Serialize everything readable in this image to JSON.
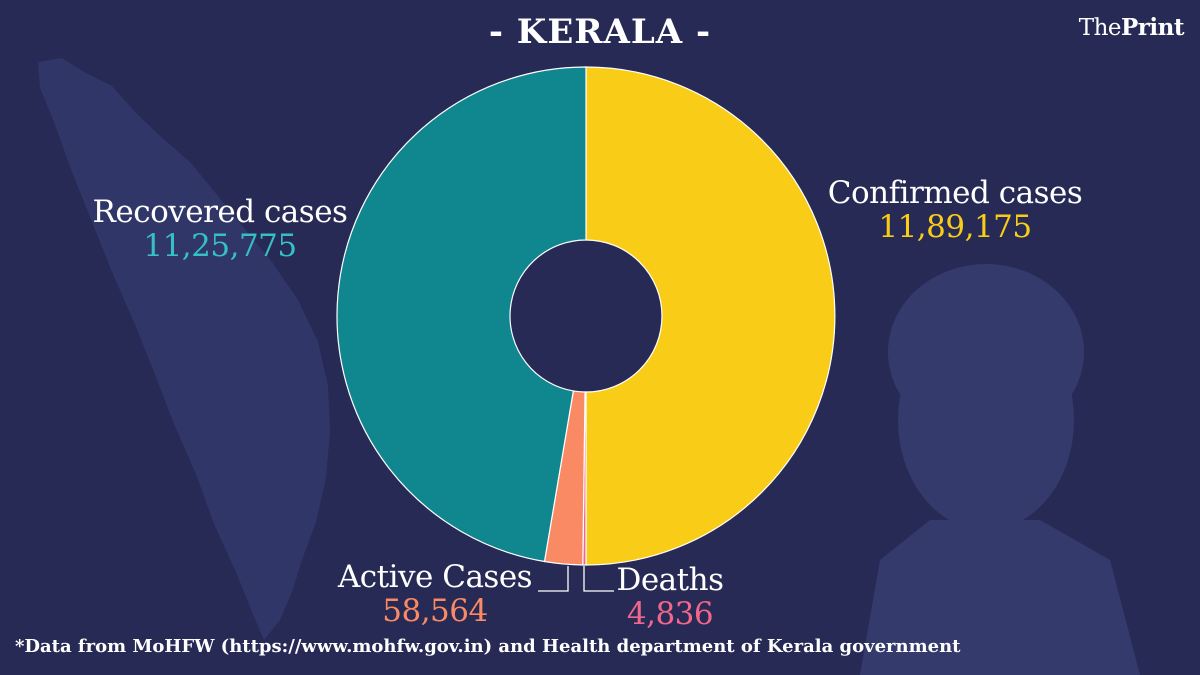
{
  "title": "- KERALA -",
  "brand": {
    "prefix": "The",
    "name": "Print"
  },
  "source_note": "*Data from MoHFW (https://www.mohfw.gov.in) and Health department of  Kerala  government",
  "colors": {
    "background": "#262a55",
    "confirmed": "#f9cd17",
    "recovered": "#10868f",
    "active": "#fa8a63",
    "deaths": "#f2668b",
    "recovered_text": "#35c0c5"
  },
  "chart_data": {
    "type": "pie",
    "donut": true,
    "slices": [
      {
        "label": "Confirmed cases",
        "value": 1189175,
        "value_text": "11,89,175"
      },
      {
        "label": "Deaths",
        "value": 4836,
        "value_text": "4,836"
      },
      {
        "label": "Active Cases",
        "value": 58564,
        "value_text": "58,564"
      },
      {
        "label": "Recovered cases",
        "value": 1125775,
        "value_text": "11,25,775"
      }
    ]
  }
}
